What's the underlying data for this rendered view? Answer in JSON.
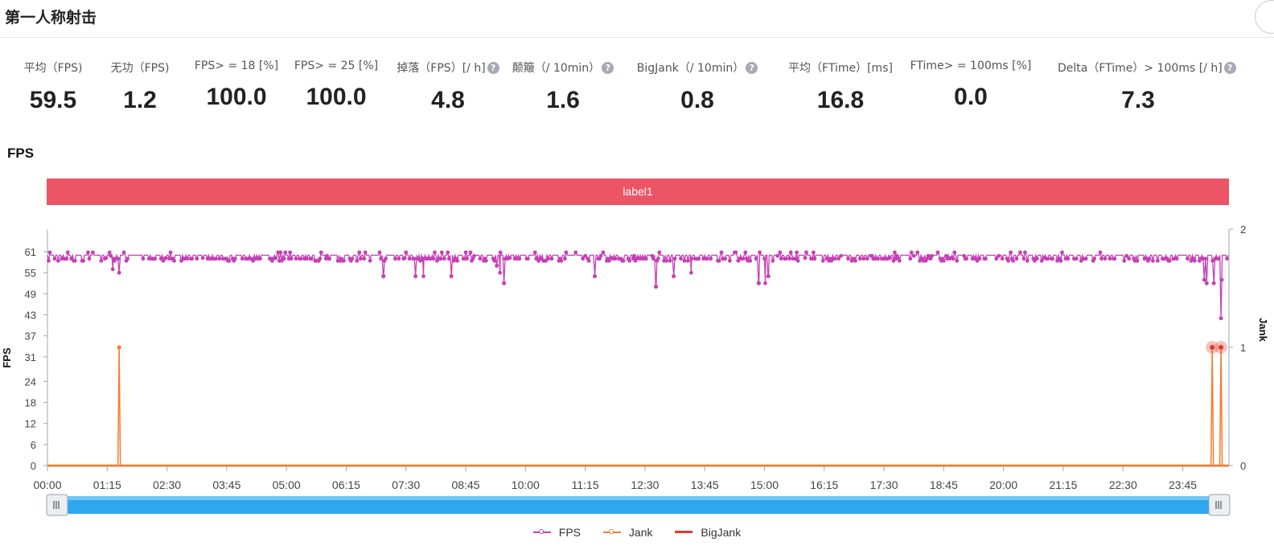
{
  "header": {
    "title": "第一人称射击"
  },
  "metrics": [
    {
      "label": "平均（FPS)",
      "value": "59.5",
      "help": false
    },
    {
      "label": "无功（FPS)",
      "value": "1.2",
      "help": false
    },
    {
      "label": "FPS> = 18 [%]",
      "value": "100.0",
      "help": false
    },
    {
      "label": "FPS> = 25 [%]",
      "value": "100.0",
      "help": false
    },
    {
      "label": "掉落（FPS）[/ h]",
      "value": "4.8",
      "help": true
    },
    {
      "label": "颠簸（/ 10min）",
      "value": "1.6",
      "help": true
    },
    {
      "label": "BigJank（/ 10min）",
      "value": "0.8",
      "help": true
    },
    {
      "label": "平均（FTime）[ms]",
      "value": "16.8",
      "help": false
    },
    {
      "label": "FTime> = 100ms [%]",
      "value": "0.0",
      "help": false
    },
    {
      "label": "Delta（FTime）> 100ms [/ h]",
      "value": "7.3",
      "help": true
    }
  ],
  "help_icon": "?",
  "section_title": "FPS",
  "band_label": "label1",
  "chart_data": {
    "type": "line",
    "xlabel": "",
    "ylabel": "FPS",
    "y2label": "Jank",
    "x_unit": "minutes",
    "xlim": [
      0,
      1483
    ],
    "x_ticks": [
      "00:00",
      "01:15",
      "02:30",
      "03:45",
      "05:00",
      "06:15",
      "07:30",
      "08:45",
      "10:00",
      "11:15",
      "12:30",
      "13:45",
      "15:00",
      "16:15",
      "17:30",
      "18:45",
      "20:00",
      "21:15",
      "22:30",
      "23:45"
    ],
    "y_ticks": [
      0,
      6,
      12,
      18,
      24,
      31,
      37,
      43,
      49,
      55,
      61
    ],
    "ylim": [
      0,
      61
    ],
    "y2_ticks": [
      0,
      1,
      2
    ],
    "y2lim": [
      0,
      2
    ],
    "series": [
      {
        "name": "FPS",
        "color": "#c640b5",
        "axis": "left",
        "baseline": 60,
        "typical_min": 59,
        "dips": [
          [
            82,
            56
          ],
          [
            90,
            55
          ],
          [
            422,
            54
          ],
          [
            462,
            54
          ],
          [
            472,
            54
          ],
          [
            507,
            54
          ],
          [
            564,
            57
          ],
          [
            568,
            55
          ],
          [
            573,
            52
          ],
          [
            687,
            54
          ],
          [
            764,
            51
          ],
          [
            786,
            54
          ],
          [
            808,
            55
          ],
          [
            893,
            52
          ],
          [
            901,
            52
          ],
          [
            905,
            54
          ],
          [
            1452,
            53
          ],
          [
            1455,
            52
          ],
          [
            1464,
            52
          ],
          [
            1473,
            42
          ],
          [
            1474,
            53
          ]
        ]
      },
      {
        "name": "Jank",
        "color": "#f57c2d",
        "axis": "right",
        "points": [
          [
            90,
            1
          ],
          [
            1462,
            1
          ],
          [
            1473,
            1
          ]
        ]
      },
      {
        "name": "BigJank",
        "color": "#e2392a",
        "axis": "right",
        "points": [
          [
            1462,
            1
          ],
          [
            1473,
            1
          ]
        ]
      }
    ],
    "legend_position": "bottom-center",
    "zoom_range": [
      0,
      1
    ]
  }
}
